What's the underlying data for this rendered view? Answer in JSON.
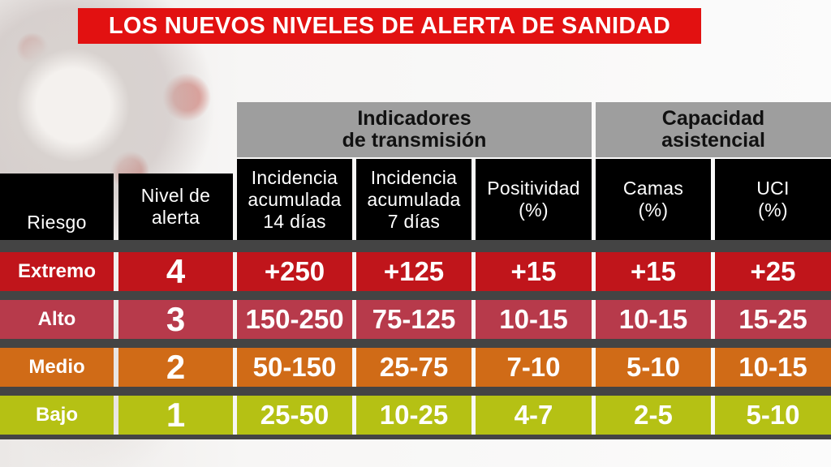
{
  "title": "LOS NUEVOS NIVELES DE ALERTA DE SANIDAD",
  "group_headers": {
    "transmission": "Indicadores\nde transmisión",
    "capacity": "Capacidad\nasistencial"
  },
  "columns": {
    "riesgo": "Riesgo",
    "nivel": "Nivel de\nalerta",
    "ia14": "Incidencia\nacumulada\n14 días",
    "ia7": "Incidencia\nacumulada\n7 días",
    "positividad": "Positividad\n(%)",
    "camas": "Camas\n(%)",
    "uci": "UCI\n(%)"
  },
  "rows": [
    {
      "riesgo": "Extremo",
      "nivel": "4",
      "ia14": "+250",
      "ia7": "+125",
      "positividad": "+15",
      "camas": "+15",
      "uci": "+25",
      "color": "#c0151b"
    },
    {
      "riesgo": "Alto",
      "nivel": "3",
      "ia14": "150-250",
      "ia7": "75-125",
      "positividad": "10-15",
      "camas": "10-15",
      "uci": "15-25",
      "color": "#b73a4b"
    },
    {
      "riesgo": "Medio",
      "nivel": "2",
      "ia14": "50-150",
      "ia7": "25-75",
      "positividad": "7-10",
      "camas": "5-10",
      "uci": "10-15",
      "color": "#d06b17"
    },
    {
      "riesgo": "Bajo",
      "nivel": "1",
      "ia14": "25-50",
      "ia7": "10-25",
      "positividad": "4-7",
      "camas": "2-5",
      "uci": "5-10",
      "color": "#b5c114"
    }
  ]
}
